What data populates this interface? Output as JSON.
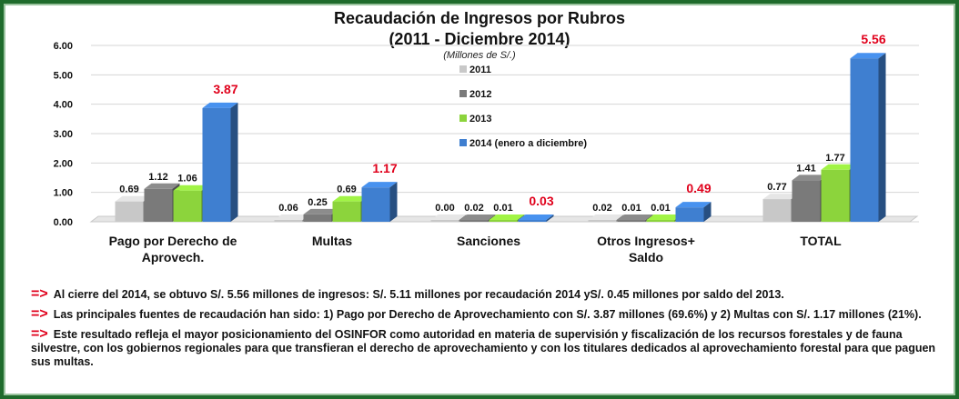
{
  "chart_data": {
    "type": "bar",
    "title": "Recaudación  de Ingresos por Rubros",
    "subtitle": "(2011 - Diciembre 2014)",
    "units": "(Millones de S/.)",
    "categories": [
      "Pago por Derecho de Aprovech.",
      "Multas",
      "Sanciones",
      "Otros Ingresos+ Saldo",
      "TOTAL"
    ],
    "category_lines": [
      [
        "Pago por Derecho de",
        "Aprovech."
      ],
      [
        "Multas"
      ],
      [
        "Sanciones"
      ],
      [
        "Otros Ingresos+",
        "Saldo"
      ],
      [
        "TOTAL"
      ]
    ],
    "series": [
      {
        "name": "2011",
        "color": "#c8c8c8",
        "values": [
          0.69,
          0.06,
          0.0,
          0.02,
          0.77
        ]
      },
      {
        "name": "2012",
        "color": "#7a7a7a",
        "values": [
          1.12,
          0.25,
          0.02,
          0.01,
          1.41
        ]
      },
      {
        "name": "2013",
        "color": "#8cd43c",
        "values": [
          1.06,
          0.69,
          0.01,
          0.01,
          1.77
        ]
      },
      {
        "name": "2014 (enero a diciembre)",
        "color": "#3f7fd0",
        "values": [
          3.87,
          1.17,
          0.03,
          0.49,
          5.56
        ]
      }
    ],
    "value_labels": [
      [
        "0.69",
        "1.12",
        "1.06",
        "3.87"
      ],
      [
        "0.06",
        "0.25",
        "0.69",
        "1.17"
      ],
      [
        "0.00",
        "0.02",
        "0.01",
        "0.03"
      ],
      [
        "0.02",
        "0.01",
        "0.01",
        "0.49"
      ],
      [
        "0.77",
        "1.41",
        "1.77",
        "5.56"
      ]
    ],
    "highlight_color": "#e0001b",
    "y_ticks": [
      "0.00",
      "1.00",
      "2.00",
      "3.00",
      "4.00",
      "5.00",
      "6.00"
    ],
    "ylim": [
      0,
      6
    ],
    "grid": true,
    "legend_position": "center"
  },
  "notes": [
    {
      "arrow": "=>",
      "text": "Al cierre del 2014, se obtuvo S/. 5.56 millones de ingresos:  S/. 5.11 millones por recaudación 2014 yS/. 0.45 millones por saldo del 2013."
    },
    {
      "arrow": "=>",
      "text": "Las principales fuentes de recaudación han sido: 1) Pago por Derecho de Aprovechamiento con S/. 3.87 millones (69.6%) y 2)  Multas con S/. 1.17 millones (21%)."
    },
    {
      "arrow": "=>",
      "text": "Este resultado refleja el mayor posicionamiento del OSINFOR como autoridad en materia de supervisión y fiscalización de los recursos forestales y de fauna silvestre, con los gobiernos regionales para que transfieran el derecho de aprovechamiento y con los titulares dedicados al aprovechamiento forestal para que paguen sus multas."
    }
  ]
}
